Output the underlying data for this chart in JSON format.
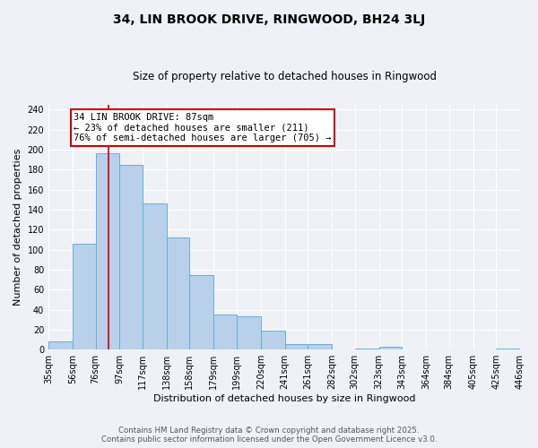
{
  "title": "34, LIN BROOK DRIVE, RINGWOOD, BH24 3LJ",
  "subtitle": "Size of property relative to detached houses in Ringwood",
  "xlabel": "Distribution of detached houses by size in Ringwood",
  "ylabel": "Number of detached properties",
  "bar_edges": [
    35,
    56,
    76,
    97,
    117,
    138,
    158,
    179,
    199,
    220,
    241,
    261,
    282,
    302,
    323,
    343,
    364,
    384,
    405,
    425,
    446
  ],
  "bar_heights": [
    8,
    106,
    196,
    185,
    146,
    112,
    75,
    35,
    33,
    19,
    6,
    6,
    0,
    1,
    3,
    0,
    0,
    0,
    0,
    1
  ],
  "bar_color": "#b8d0ea",
  "bar_edgecolor": "#6aaed6",
  "property_line_x": 87,
  "property_line_color": "#cc0000",
  "annotation_text": "34 LIN BROOK DRIVE: 87sqm\n← 23% of detached houses are smaller (211)\n76% of semi-detached houses are larger (705) →",
  "annotation_box_color": "#ffffff",
  "annotation_box_edgecolor": "#cc0000",
  "ylim": [
    0,
    245
  ],
  "yticks": [
    0,
    20,
    40,
    60,
    80,
    100,
    120,
    140,
    160,
    180,
    200,
    220,
    240
  ],
  "background_color": "#eef2f7",
  "grid_color": "#ffffff",
  "footer_line1": "Contains HM Land Registry data © Crown copyright and database right 2025.",
  "footer_line2": "Contains public sector information licensed under the Open Government Licence v3.0.",
  "title_fontsize": 10,
  "subtitle_fontsize": 8.5,
  "xlabel_fontsize": 8,
  "ylabel_fontsize": 8,
  "tick_fontsize": 7,
  "annotation_fontsize": 7.5,
  "footer_fontsize": 6.2
}
